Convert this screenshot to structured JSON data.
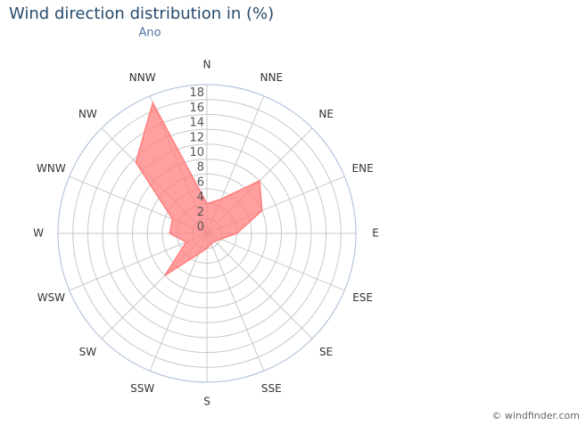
{
  "chart_data": {
    "type": "radar",
    "title": "Wind direction distribution in (%)",
    "subtitle": "Ano",
    "categories": [
      "N",
      "NNE",
      "NE",
      "ENE",
      "E",
      "ESE",
      "SE",
      "SSE",
      "S",
      "SSW",
      "SW",
      "WSW",
      "W",
      "WNW",
      "NW",
      "NNW"
    ],
    "values": [
      4,
      5,
      10,
      8,
      4,
      2,
      1.5,
      1.5,
      2,
      3,
      8,
      3,
      5,
      5,
      13.5,
      19
    ],
    "color": "#ff7f7f",
    "ylim": [
      0,
      20
    ],
    "yticks": [
      0,
      2,
      4,
      6,
      8,
      10,
      12,
      14,
      16,
      18
    ],
    "grid": true,
    "credit": "© windfinder.com"
  }
}
